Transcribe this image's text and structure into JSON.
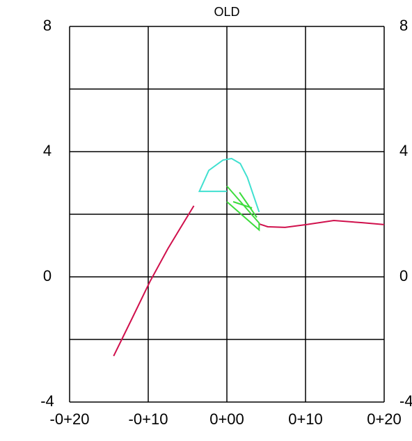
{
  "chart_data": {
    "type": "line",
    "title": "OLD",
    "xlim": [
      -20,
      20
    ],
    "ylim": [
      -4,
      8
    ],
    "xticks": [
      {
        "value": -20,
        "label": "-0+20"
      },
      {
        "value": -10,
        "label": "-0+10"
      },
      {
        "value": 0,
        "label": "0+00"
      },
      {
        "value": 10,
        "label": "0+10"
      },
      {
        "value": 20,
        "label": "0+20"
      }
    ],
    "yticks": [
      -4,
      0,
      4,
      8
    ],
    "y2ticks": [
      -4,
      0,
      4,
      8
    ],
    "ygrid": [
      -4,
      -2,
      0,
      2,
      4,
      6,
      8
    ],
    "grid": true,
    "series": [
      {
        "color": "#d0104c",
        "x": [
          -14.4,
          -12,
          -9.8,
          -7.5,
          -6.3,
          -4.2,
          null,
          4.1,
          5.2,
          7.4,
          10.1,
          13.6,
          17.2,
          20
        ],
        "values": [
          -2.53,
          -1.3,
          -0.16,
          0.9,
          1.4,
          2.27,
          null,
          1.69,
          1.6,
          1.58,
          1.67,
          1.8,
          1.73,
          1.67
        ]
      },
      {
        "color": "#40e0d0",
        "x": [
          0,
          -3.5,
          -2.3,
          -0.5,
          0.6,
          1.7,
          2.6,
          4.1
        ],
        "values": [
          2.73,
          2.73,
          3.4,
          3.73,
          3.78,
          3.62,
          3.18,
          2.07
        ]
      },
      {
        "color": "#3ddc3d",
        "x": [
          0,
          4.1,
          4.1,
          0,
          null,
          0.8,
          3.2,
          null,
          1.6,
          3.8
        ],
        "values": [
          2.9,
          1.72,
          1.5,
          2.4,
          null,
          2.4,
          2.2,
          null,
          2.7,
          1.9
        ]
      }
    ]
  }
}
